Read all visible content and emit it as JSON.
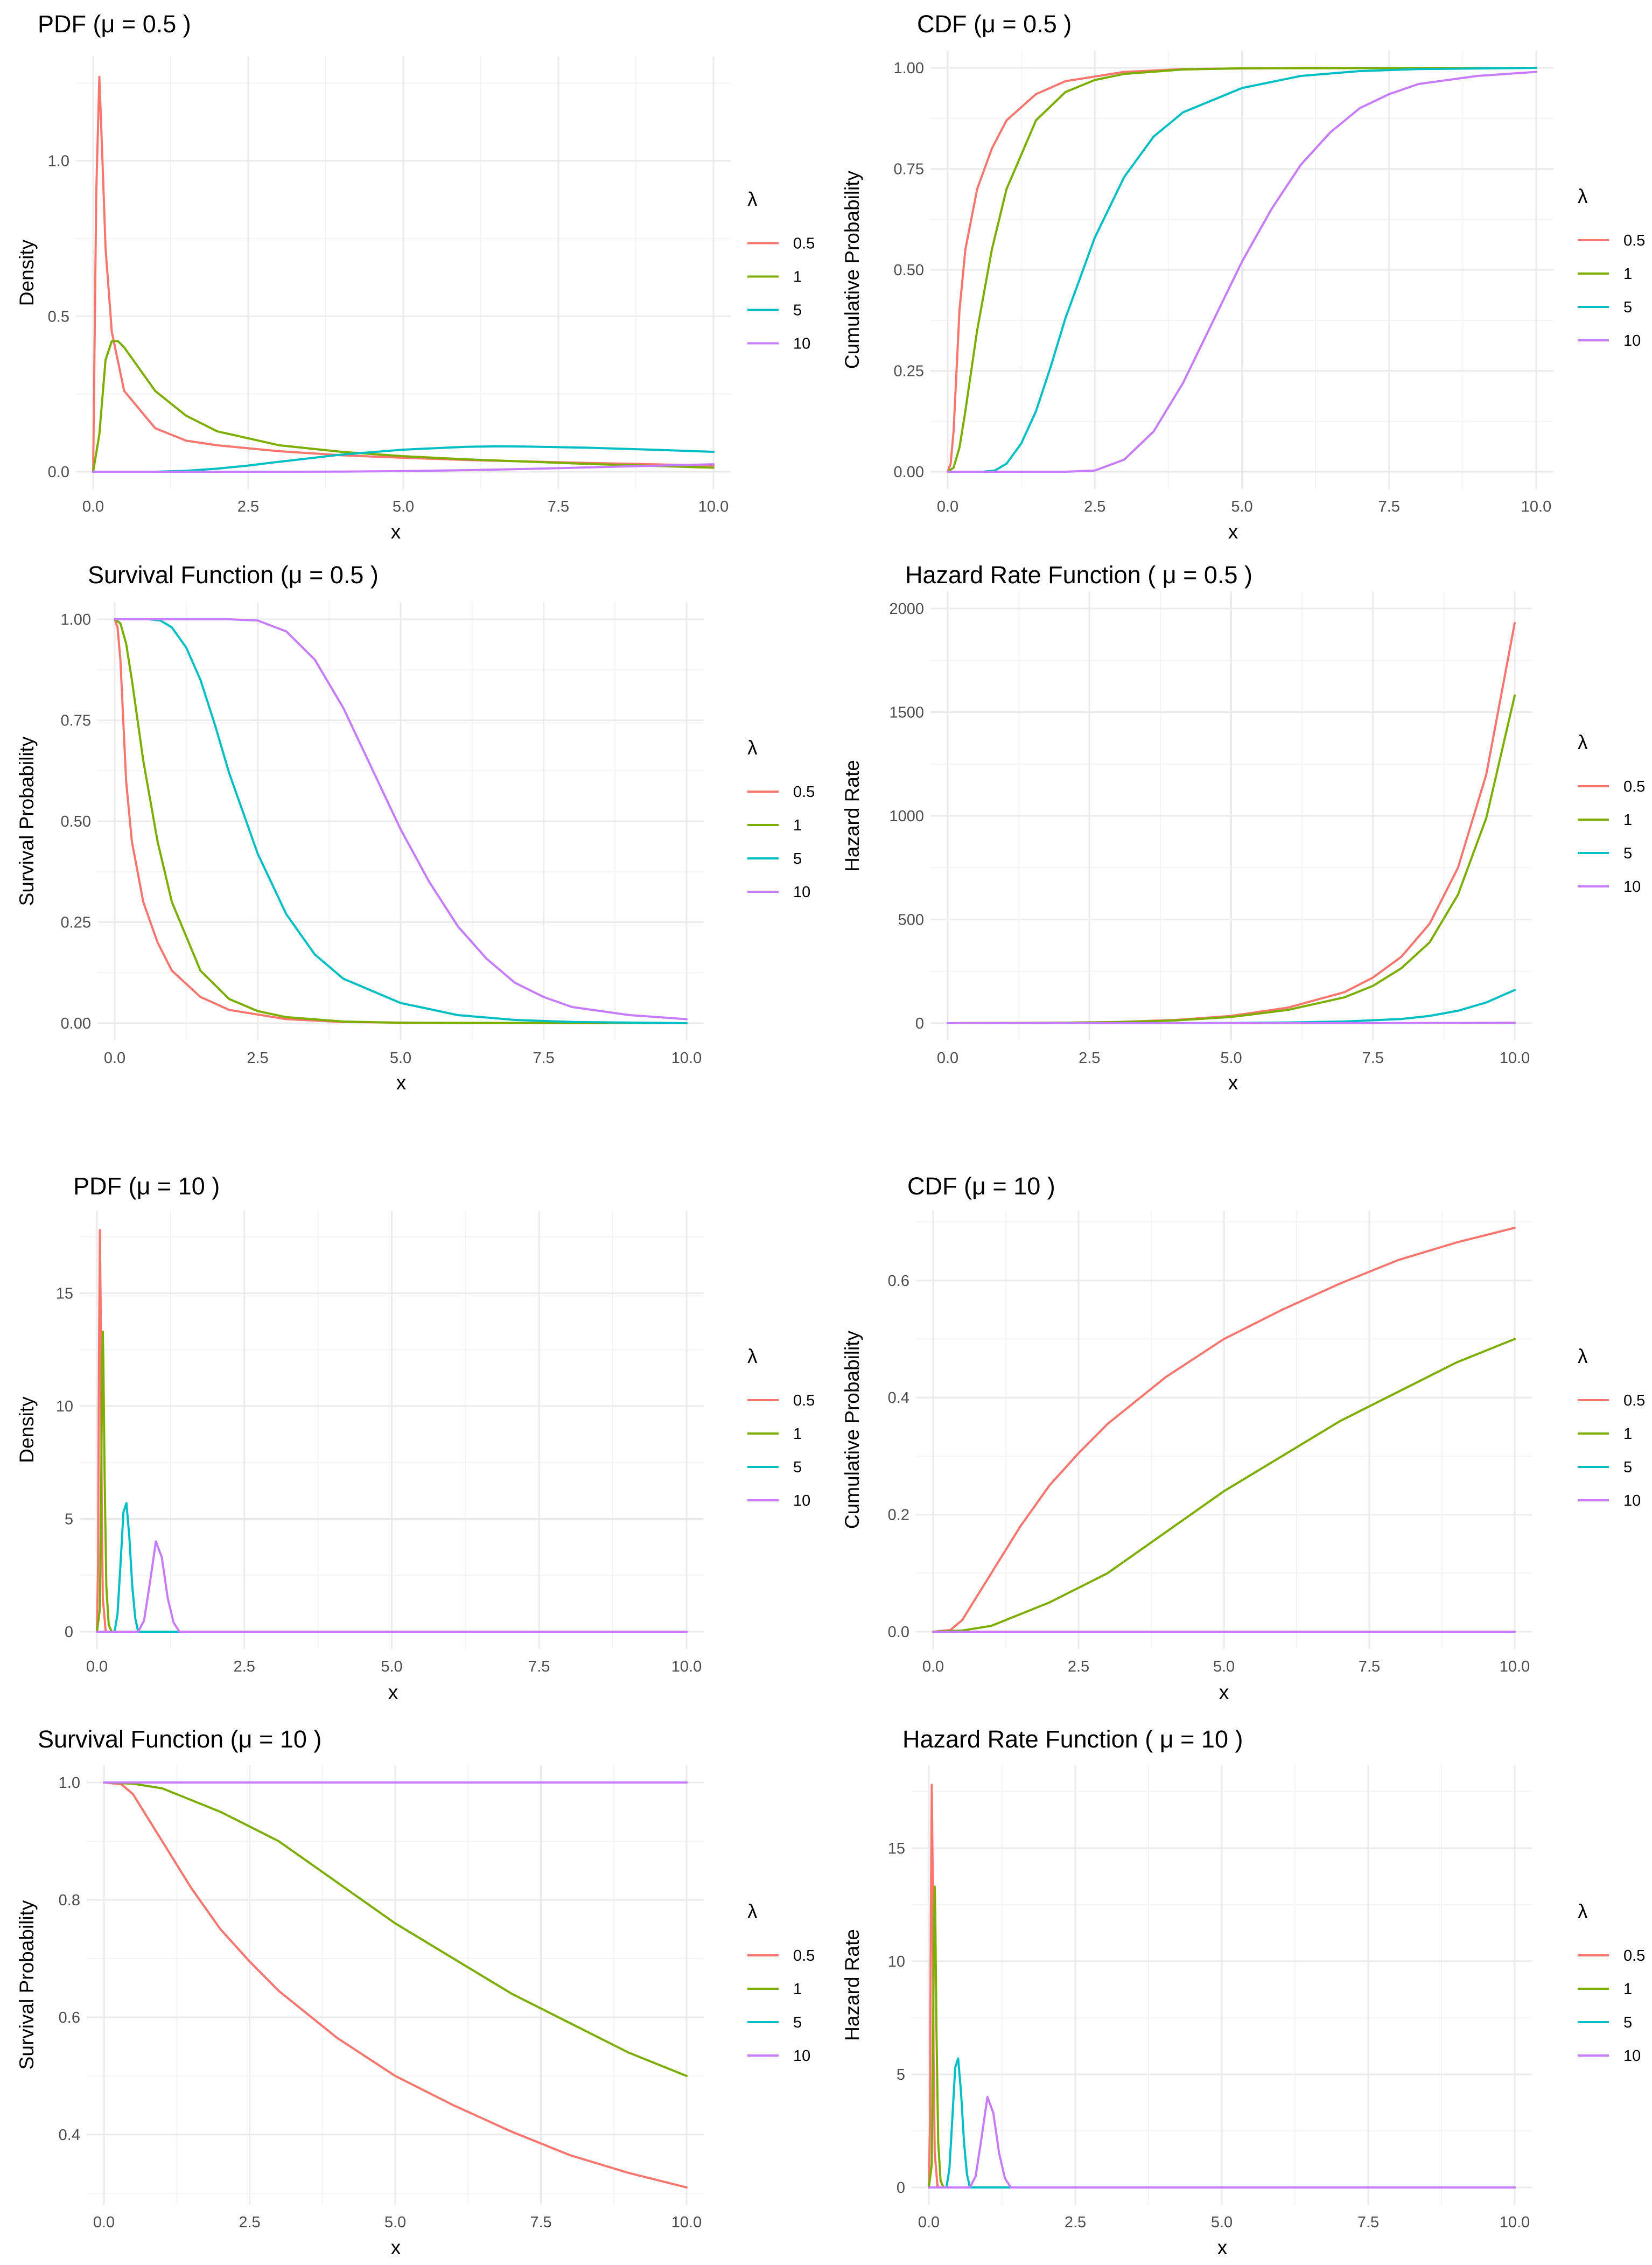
{
  "legend_title": "λ",
  "series_names": [
    "0.5",
    "1",
    "5",
    "10"
  ],
  "colors": {
    "lam0.5": "#F8766D",
    "lam1": "#7CAE00",
    "lam5": "#00BFC4",
    "lam10": "#C77CFF"
  },
  "chart_data": [
    {
      "type": "line",
      "title": "PDF (μ = 0.5 )",
      "xlabel": "x",
      "ylabel": "Density",
      "xlim": [
        0,
        10
      ],
      "ylim": [
        0,
        1.28
      ],
      "xticks": [
        "0.0",
        "2.5",
        "5.0",
        "7.5",
        "10.0"
      ],
      "yticks": [
        "0.0",
        "0.5",
        "1.0"
      ],
      "series": [
        {
          "name": "0.5",
          "x": [
            0,
            0.05,
            0.1,
            0.15,
            0.2,
            0.3,
            0.5,
            1,
            1.5,
            2,
            3,
            4,
            5,
            6,
            8,
            10
          ],
          "values": [
            0,
            0.9,
            1.27,
            1.0,
            0.72,
            0.45,
            0.26,
            0.14,
            0.1,
            0.085,
            0.066,
            0.053,
            0.045,
            0.038,
            0.028,
            0.02
          ]
        },
        {
          "name": "1",
          "x": [
            0,
            0.1,
            0.2,
            0.3,
            0.4,
            0.5,
            0.75,
            1,
            1.5,
            2,
            3,
            4,
            5,
            6,
            8,
            10
          ],
          "values": [
            0,
            0.12,
            0.36,
            0.42,
            0.42,
            0.4,
            0.33,
            0.26,
            0.18,
            0.13,
            0.085,
            0.064,
            0.05,
            0.04,
            0.025,
            0.013
          ]
        },
        {
          "name": "5",
          "x": [
            0,
            1,
            1.5,
            2,
            2.5,
            3,
            4,
            5,
            6,
            6.5,
            7,
            8,
            9,
            10
          ],
          "values": [
            0,
            0,
            0.003,
            0.01,
            0.02,
            0.032,
            0.055,
            0.071,
            0.08,
            0.082,
            0.081,
            0.077,
            0.071,
            0.064
          ]
        },
        {
          "name": "10",
          "x": [
            0,
            3,
            4,
            5,
            6,
            7,
            8,
            9,
            10
          ],
          "values": [
            0,
            0,
            0.0005,
            0.002,
            0.005,
            0.009,
            0.014,
            0.019,
            0.024
          ]
        }
      ]
    },
    {
      "type": "line",
      "title": "CDF (μ = 0.5 )",
      "xlabel": "x",
      "ylabel": "Cumulative Probability",
      "xlim": [
        0,
        10
      ],
      "ylim": [
        0,
        1
      ],
      "xticks": [
        "0.0",
        "2.5",
        "5.0",
        "7.5",
        "10.0"
      ],
      "yticks": [
        "0.00",
        "0.25",
        "0.50",
        "0.75",
        "1.00"
      ],
      "series": [
        {
          "name": "0.5",
          "x": [
            0,
            0.05,
            0.1,
            0.15,
            0.2,
            0.3,
            0.5,
            0.75,
            1,
            1.5,
            2,
            3,
            4,
            6,
            10
          ],
          "values": [
            0,
            0.02,
            0.1,
            0.25,
            0.4,
            0.55,
            0.7,
            0.8,
            0.87,
            0.935,
            0.967,
            0.99,
            0.997,
            1,
            1
          ]
        },
        {
          "name": "1",
          "x": [
            0,
            0.1,
            0.2,
            0.3,
            0.5,
            0.75,
            1,
            1.5,
            2,
            2.5,
            3,
            4,
            5,
            10
          ],
          "values": [
            0,
            0.01,
            0.06,
            0.15,
            0.35,
            0.55,
            0.7,
            0.87,
            0.94,
            0.97,
            0.985,
            0.996,
            0.999,
            1
          ]
        },
        {
          "name": "5",
          "x": [
            0,
            0.6,
            0.8,
            1,
            1.25,
            1.5,
            1.75,
            2,
            2.5,
            3,
            3.5,
            4,
            5,
            6,
            7,
            8,
            10
          ],
          "values": [
            0,
            0,
            0.003,
            0.02,
            0.07,
            0.15,
            0.26,
            0.38,
            0.58,
            0.73,
            0.83,
            0.89,
            0.95,
            0.98,
            0.992,
            0.997,
            1
          ]
        },
        {
          "name": "10",
          "x": [
            0,
            2,
            2.5,
            3,
            3.5,
            4,
            4.5,
            5,
            5.5,
            6,
            6.5,
            7,
            7.5,
            8,
            9,
            10
          ],
          "values": [
            0,
            0,
            0.003,
            0.03,
            0.1,
            0.22,
            0.37,
            0.52,
            0.65,
            0.76,
            0.84,
            0.9,
            0.935,
            0.96,
            0.98,
            0.99
          ]
        }
      ]
    },
    {
      "type": "line",
      "title": "Survival Function (μ = 0.5 )",
      "xlabel": "x",
      "ylabel": "Survival Probability",
      "xlim": [
        0,
        10
      ],
      "ylim": [
        0,
        1
      ],
      "xticks": [
        "0.0",
        "2.5",
        "5.0",
        "7.5",
        "10.0"
      ],
      "yticks": [
        "0.00",
        "0.25",
        "0.50",
        "0.75",
        "1.00"
      ],
      "series": [
        {
          "name": "0.5",
          "x": [
            0,
            0.05,
            0.1,
            0.15,
            0.2,
            0.3,
            0.5,
            0.75,
            1,
            1.5,
            2,
            3,
            4,
            6,
            10
          ],
          "values": [
            1,
            0.98,
            0.9,
            0.75,
            0.6,
            0.45,
            0.3,
            0.2,
            0.13,
            0.065,
            0.033,
            0.01,
            0.003,
            0,
            0
          ]
        },
        {
          "name": "1",
          "x": [
            0,
            0.1,
            0.2,
            0.3,
            0.5,
            0.75,
            1,
            1.5,
            2,
            2.5,
            3,
            4,
            5,
            10
          ],
          "values": [
            1,
            0.99,
            0.94,
            0.85,
            0.65,
            0.45,
            0.3,
            0.13,
            0.06,
            0.03,
            0.015,
            0.004,
            0.001,
            0
          ]
        },
        {
          "name": "5",
          "x": [
            0,
            0.6,
            0.8,
            1,
            1.25,
            1.5,
            1.75,
            2,
            2.5,
            3,
            3.5,
            4,
            5,
            6,
            7,
            8,
            10
          ],
          "values": [
            1,
            1,
            0.997,
            0.98,
            0.93,
            0.85,
            0.74,
            0.62,
            0.42,
            0.27,
            0.17,
            0.11,
            0.05,
            0.02,
            0.008,
            0.003,
            0
          ]
        },
        {
          "name": "10",
          "x": [
            0,
            2,
            2.5,
            3,
            3.5,
            4,
            4.5,
            5,
            5.5,
            6,
            6.5,
            7,
            7.5,
            8,
            9,
            10
          ],
          "values": [
            1,
            1,
            0.997,
            0.97,
            0.9,
            0.78,
            0.63,
            0.48,
            0.35,
            0.24,
            0.16,
            0.1,
            0.065,
            0.04,
            0.02,
            0.01
          ]
        }
      ]
    },
    {
      "type": "line",
      "title": "Hazard Rate Function ( μ = 0.5 )",
      "xlabel": "x",
      "ylabel": "Hazard Rate",
      "xlim": [
        0,
        10
      ],
      "ylim": [
        0,
        2000
      ],
      "xticks": [
        "0.0",
        "2.5",
        "5.0",
        "7.5",
        "10.0"
      ],
      "yticks": [
        "0",
        "500",
        "1000",
        "1500",
        "2000"
      ],
      "series": [
        {
          "name": "0.5",
          "x": [
            0,
            2,
            3,
            4,
            5,
            6,
            7,
            7.5,
            8,
            8.5,
            9,
            9.5,
            10
          ],
          "values": [
            0,
            2,
            6,
            15,
            35,
            75,
            150,
            220,
            320,
            480,
            750,
            1200,
            1930
          ]
        },
        {
          "name": "1",
          "x": [
            0,
            2,
            3,
            4,
            5,
            6,
            7,
            7.5,
            8,
            8.5,
            9,
            9.5,
            10
          ],
          "values": [
            0,
            2,
            5,
            13,
            30,
            64,
            125,
            180,
            265,
            390,
            620,
            990,
            1580
          ]
        },
        {
          "name": "5",
          "x": [
            0,
            5,
            6,
            7,
            8,
            8.5,
            9,
            9.5,
            10
          ],
          "values": [
            0,
            0.5,
            3,
            8,
            20,
            35,
            60,
            100,
            160
          ]
        },
        {
          "name": "10",
          "x": [
            0,
            6,
            8,
            9,
            10
          ],
          "values": [
            0,
            0,
            0.5,
            1,
            2
          ]
        }
      ]
    },
    {
      "type": "line",
      "title": "PDF (μ = 10 )",
      "xlabel": "x",
      "ylabel": "Density",
      "xlim": [
        0,
        10
      ],
      "ylim": [
        0,
        17.9
      ],
      "xticks": [
        "0.0",
        "2.5",
        "5.0",
        "7.5",
        "10.0"
      ],
      "yticks": [
        "0",
        "5",
        "10",
        "15"
      ],
      "series": [
        {
          "name": "0.5",
          "x": [
            0,
            0.02,
            0.035,
            0.05,
            0.065,
            0.08,
            0.1,
            0.15,
            10
          ],
          "values": [
            0,
            3,
            12,
            17.8,
            14,
            6,
            1.5,
            0,
            0
          ]
        },
        {
          "name": "1",
          "x": [
            0,
            0.05,
            0.07,
            0.09,
            0.1,
            0.11,
            0.13,
            0.16,
            0.2,
            0.25,
            10
          ],
          "values": [
            0,
            1,
            6,
            12,
            13.3,
            12,
            7,
            2,
            0.3,
            0,
            0
          ]
        },
        {
          "name": "5",
          "x": [
            0,
            0.3,
            0.35,
            0.4,
            0.45,
            0.5,
            0.55,
            0.6,
            0.65,
            0.7,
            10
          ],
          "values": [
            0,
            0,
            0.8,
            3,
            5.3,
            5.7,
            4.2,
            2,
            0.6,
            0,
            0
          ]
        },
        {
          "name": "10",
          "x": [
            0,
            0.7,
            0.8,
            0.9,
            1,
            1.1,
            1.2,
            1.3,
            1.4,
            10
          ],
          "values": [
            0,
            0,
            0.5,
            2.2,
            4,
            3.3,
            1.5,
            0.4,
            0,
            0
          ]
        }
      ]
    },
    {
      "type": "line",
      "title": "CDF (μ = 10 )",
      "xlabel": "x",
      "ylabel": "Cumulative Probability",
      "xlim": [
        0,
        10
      ],
      "ylim": [
        0,
        0.69
      ],
      "xticks": [
        "0.0",
        "2.5",
        "5.0",
        "7.5",
        "10.0"
      ],
      "yticks": [
        "0.0",
        "0.2",
        "0.4",
        "0.6"
      ],
      "series": [
        {
          "name": "0.5",
          "x": [
            0,
            0.3,
            0.5,
            0.75,
            1,
            1.5,
            2,
            2.5,
            3,
            4,
            5,
            6,
            7,
            8,
            9,
            10
          ],
          "values": [
            0,
            0.003,
            0.02,
            0.06,
            0.1,
            0.18,
            0.25,
            0.305,
            0.355,
            0.435,
            0.5,
            0.55,
            0.595,
            0.635,
            0.665,
            0.69
          ]
        },
        {
          "name": "1",
          "x": [
            0,
            0.5,
            1,
            1.5,
            2,
            2.5,
            3,
            4,
            5,
            6,
            7,
            8,
            9,
            10
          ],
          "values": [
            0,
            0.002,
            0.01,
            0.03,
            0.05,
            0.075,
            0.1,
            0.17,
            0.24,
            0.3,
            0.36,
            0.41,
            0.46,
            0.5
          ]
        },
        {
          "name": "5",
          "x": [
            0,
            10
          ],
          "values": [
            0,
            0
          ]
        },
        {
          "name": "10",
          "x": [
            0,
            10
          ],
          "values": [
            0,
            0
          ]
        }
      ]
    },
    {
      "type": "line",
      "title": "Survival Function (μ = 10 )",
      "xlabel": "x",
      "ylabel": "Survival Probability",
      "xlim": [
        0,
        10
      ],
      "ylim": [
        0.31,
        1
      ],
      "xticks": [
        "0.0",
        "2.5",
        "5.0",
        "7.5",
        "10.0"
      ],
      "yticks": [
        "0.4",
        "0.6",
        "0.8",
        "1.0"
      ],
      "series": [
        {
          "name": "0.5",
          "x": [
            0,
            0.3,
            0.5,
            0.75,
            1,
            1.5,
            2,
            2.5,
            3,
            4,
            5,
            6,
            7,
            8,
            9,
            10
          ],
          "values": [
            1,
            0.997,
            0.98,
            0.94,
            0.9,
            0.82,
            0.75,
            0.695,
            0.645,
            0.565,
            0.5,
            0.45,
            0.405,
            0.365,
            0.335,
            0.31
          ]
        },
        {
          "name": "1",
          "x": [
            0,
            0.5,
            1,
            1.5,
            2,
            2.5,
            3,
            4,
            5,
            6,
            7,
            8,
            9,
            10
          ],
          "values": [
            1,
            0.998,
            0.99,
            0.97,
            0.95,
            0.925,
            0.9,
            0.83,
            0.76,
            0.7,
            0.64,
            0.59,
            0.54,
            0.5
          ]
        },
        {
          "name": "5",
          "x": [
            0,
            10
          ],
          "values": [
            1,
            1
          ]
        },
        {
          "name": "10",
          "x": [
            0,
            10
          ],
          "values": [
            1,
            1
          ]
        }
      ]
    },
    {
      "type": "line",
      "title": "Hazard Rate Function ( μ = 10 )",
      "xlabel": "x",
      "ylabel": "Hazard Rate",
      "xlim": [
        0,
        10
      ],
      "ylim": [
        0,
        17.9
      ],
      "xticks": [
        "0.0",
        "2.5",
        "5.0",
        "7.5",
        "10.0"
      ],
      "yticks": [
        "0",
        "5",
        "10",
        "15"
      ],
      "series": [
        {
          "name": "0.5",
          "x": [
            0,
            0.02,
            0.035,
            0.05,
            0.065,
            0.08,
            0.1,
            0.15,
            10
          ],
          "values": [
            0,
            3,
            12,
            17.8,
            14,
            6,
            1.5,
            0,
            0
          ]
        },
        {
          "name": "1",
          "x": [
            0,
            0.05,
            0.07,
            0.09,
            0.1,
            0.11,
            0.13,
            0.16,
            0.2,
            0.25,
            10
          ],
          "values": [
            0,
            1,
            6,
            12,
            13.3,
            12,
            7,
            2,
            0.3,
            0,
            0
          ]
        },
        {
          "name": "5",
          "x": [
            0,
            0.3,
            0.35,
            0.4,
            0.45,
            0.5,
            0.55,
            0.6,
            0.65,
            0.7,
            10
          ],
          "values": [
            0,
            0,
            0.8,
            3,
            5.3,
            5.7,
            4.2,
            2,
            0.6,
            0,
            0
          ]
        },
        {
          "name": "10",
          "x": [
            0,
            0.7,
            0.8,
            0.9,
            1,
            1.1,
            1.2,
            1.3,
            1.4,
            10
          ],
          "values": [
            0,
            0,
            0.5,
            2.2,
            4,
            3.3,
            1.5,
            0.4,
            0,
            0
          ]
        }
      ]
    }
  ]
}
